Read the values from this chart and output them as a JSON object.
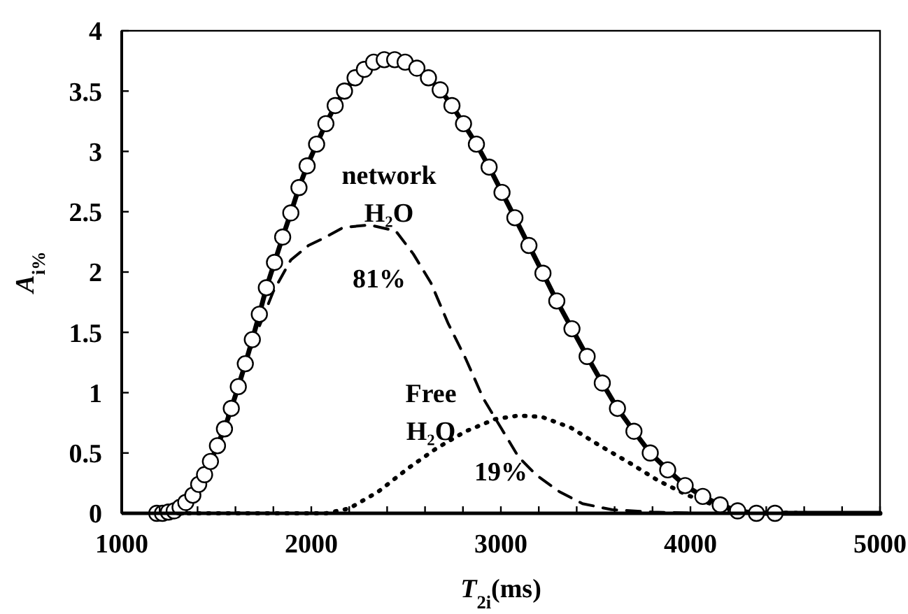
{
  "chart_data": {
    "type": "line",
    "xlabel": "T$_{2i}$(ms)",
    "ylabel": "A$_{i%}$",
    "xlim": [
      1000,
      5000
    ],
    "ylim": [
      0,
      4
    ],
    "xticks": [
      1000,
      {
        "value": 1200,
        "label": null
      },
      {
        "value": 1400,
        "label": null
      },
      {
        "value": 1600,
        "label": null
      },
      {
        "value": 1800,
        "label": null
      },
      2000,
      {
        "value": 2200,
        "label": null
      },
      {
        "value": 2400,
        "label": null
      },
      {
        "value": 2600,
        "label": null
      },
      {
        "value": 2800,
        "label": null
      },
      3000,
      {
        "value": 3200,
        "label": null
      },
      {
        "value": 3400,
        "label": null
      },
      {
        "value": 3600,
        "label": null
      },
      {
        "value": 3800,
        "label": null
      },
      4000,
      {
        "value": 4200,
        "label": null
      },
      {
        "value": 4400,
        "label": null
      },
      {
        "value": 4600,
        "label": null
      },
      {
        "value": 4800,
        "label": null
      },
      5000
    ],
    "yticks": [
      0,
      0.5,
      1,
      1.5,
      2,
      2.5,
      3,
      3.5,
      4
    ],
    "series": [
      {
        "line_style": "solid",
        "marker": "none",
        "color": "#000000",
        "x": [
          1185,
          1215,
          1246,
          1277,
          1308,
          1338,
          1375,
          1406,
          1437,
          1468,
          1505,
          1542,
          1578,
          1615,
          1652,
          1689,
          1726,
          1763,
          1806,
          1849,
          1892,
          1935,
          1978,
          2028,
          2077,
          2126,
          2175,
          2231,
          2280,
          2329,
          2385,
          2440,
          2495,
          2557,
          2618,
          2680,
          2742,
          2803,
          2871,
          2938,
          3006,
          3074,
          3148,
          3222,
          3295,
          3375,
          3455,
          3535,
          3615,
          3702,
          3788,
          3880,
          3972,
          4065,
          4157,
          4249,
          4348,
          4446,
          5000
        ],
        "values": [
          0,
          0,
          0.01,
          0.02,
          0.05,
          0.09,
          0.15,
          0.24,
          0.32,
          0.43,
          0.56,
          0.7,
          0.87,
          1.05,
          1.24,
          1.44,
          1.65,
          1.87,
          2.08,
          2.29,
          2.49,
          2.7,
          2.88,
          3.06,
          3.23,
          3.38,
          3.5,
          3.61,
          3.68,
          3.74,
          3.76,
          3.76,
          3.74,
          3.69,
          3.61,
          3.51,
          3.38,
          3.23,
          3.06,
          2.87,
          2.66,
          2.45,
          2.22,
          1.99,
          1.76,
          1.53,
          1.3,
          1.08,
          0.87,
          0.68,
          0.5,
          0.36,
          0.23,
          0.14,
          0.07,
          0.02,
          0,
          0,
          0
        ]
      },
      {
        "line_style": "dashed",
        "marker": "none",
        "color": "#000000",
        "x": [
          1250,
          1350,
          1437,
          1523,
          1615,
          1708,
          1800,
          1892,
          1985,
          2077,
          2169,
          2308,
          2446,
          2538,
          2631,
          2723,
          2815,
          2908,
          3000,
          3092,
          3185,
          3308,
          3431,
          3585,
          3800,
          4046,
          5000
        ],
        "values": [
          0,
          0.08,
          0.27,
          0.66,
          1.07,
          1.48,
          1.84,
          2.1,
          2.22,
          2.29,
          2.37,
          2.39,
          2.34,
          2.15,
          1.91,
          1.57,
          1.28,
          0.95,
          0.71,
          0.47,
          0.32,
          0.18,
          0.08,
          0.03,
          0.01,
          0,
          0
        ]
      },
      {
        "line_style": "dotted",
        "marker": "none",
        "color": "#000000",
        "x": [
          1300,
          2077,
          2200,
          2354,
          2508,
          2662,
          2815,
          2969,
          3092,
          3215,
          3369,
          3523,
          3677,
          3831,
          3985,
          4138,
          4292,
          4662,
          5000
        ],
        "values": [
          0,
          0,
          0.04,
          0.18,
          0.37,
          0.54,
          0.68,
          0.78,
          0.81,
          0.8,
          0.71,
          0.56,
          0.42,
          0.27,
          0.15,
          0.06,
          0.01,
          0,
          0
        ]
      },
      {
        "type": "scatter",
        "marker": "circle",
        "color": "#000000",
        "x": [
          1185,
          1215,
          1246,
          1277,
          1308,
          1338,
          1375,
          1406,
          1437,
          1468,
          1505,
          1542,
          1578,
          1615,
          1652,
          1689,
          1726,
          1763,
          1806,
          1849,
          1892,
          1935,
          1978,
          2028,
          2077,
          2126,
          2175,
          2231,
          2280,
          2329,
          2385,
          2440,
          2495,
          2557,
          2618,
          2680,
          2742,
          2803,
          2871,
          2938,
          3006,
          3074,
          3148,
          3222,
          3295,
          3375,
          3455,
          3535,
          3615,
          3702,
          3788,
          3880,
          3972,
          4065,
          4157,
          4249,
          4348,
          4446
        ],
        "values": [
          0,
          0,
          0.01,
          0.02,
          0.05,
          0.09,
          0.15,
          0.24,
          0.32,
          0.43,
          0.56,
          0.7,
          0.87,
          1.05,
          1.24,
          1.44,
          1.65,
          1.87,
          2.08,
          2.29,
          2.49,
          2.7,
          2.88,
          3.06,
          3.23,
          3.38,
          3.5,
          3.61,
          3.68,
          3.74,
          3.76,
          3.76,
          3.74,
          3.69,
          3.61,
          3.51,
          3.38,
          3.23,
          3.06,
          2.87,
          2.66,
          2.45,
          2.22,
          1.99,
          1.76,
          1.53,
          1.3,
          1.08,
          0.87,
          0.68,
          0.5,
          0.36,
          0.23,
          0.14,
          0.07,
          0.02,
          0,
          0
        ]
      }
    ],
    "annotations": [
      "network\nH₂O",
      "81%",
      "Free\nH₂O",
      "19%"
    ]
  }
}
